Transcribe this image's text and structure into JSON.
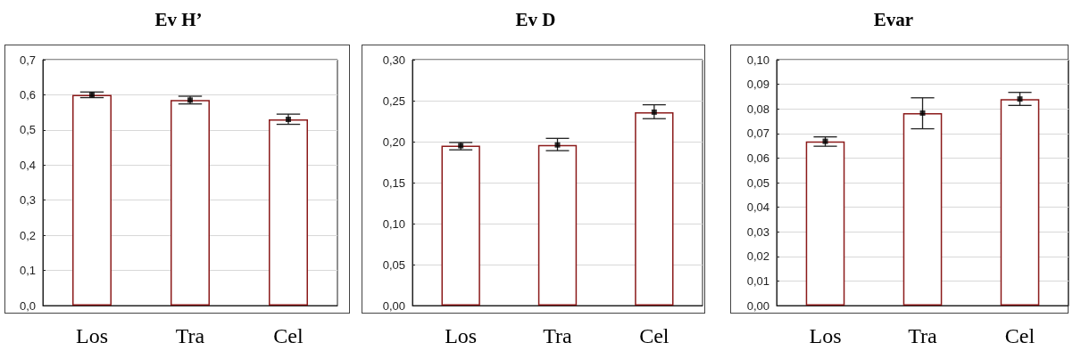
{
  "chart_data": [
    {
      "type": "bar",
      "title": "Ev H’",
      "categories": [
        "Los",
        "Tra",
        "Cel"
      ],
      "series": [
        {
          "color": "#8b1a1a",
          "values": [
            0.6,
            0.585,
            0.53
          ],
          "errors": [
            [
              0.592,
              0.608
            ],
            [
              0.574,
              0.596
            ],
            [
              0.516,
              0.545
            ]
          ]
        },
        {
          "type": "scatter",
          "color": "#000000",
          "x": [
            "Los",
            "Tra",
            "Cel"
          ],
          "values": [
            0.6,
            0.585,
            0.53
          ]
        }
      ],
      "ylim": [
        0,
        0.7
      ],
      "yticks": [
        {
          "value": 0,
          "label": "0,0"
        },
        {
          "value": 0.1,
          "label": "0,1"
        },
        {
          "value": 0.2,
          "label": "0,2"
        },
        {
          "value": 0.3,
          "label": "0,3"
        },
        {
          "value": 0.4,
          "label": "0,4"
        },
        {
          "value": 0.5,
          "label": "0,5"
        },
        {
          "value": 0.6,
          "label": "0,6"
        },
        {
          "value": 0.7,
          "label": "0,7"
        }
      ],
      "grid": "y",
      "marker": "square"
    },
    {
      "type": "bar",
      "title": "Ev D",
      "categories": [
        "Los",
        "Tra",
        "Cel"
      ],
      "series": [
        {
          "color": "#8b1a1a",
          "values": [
            0.195,
            0.196,
            0.236
          ],
          "errors": [
            [
              0.19,
              0.199
            ],
            [
              0.189,
              0.204
            ],
            [
              0.228,
              0.245
            ]
          ]
        },
        {
          "type": "scatter",
          "color": "#000000",
          "x": [
            "Los",
            "Tra",
            "Cel"
          ],
          "values": [
            0.195,
            0.196,
            0.236
          ]
        }
      ],
      "ylim": [
        0,
        0.3
      ],
      "yticks": [
        {
          "value": 0,
          "label": "0,00"
        },
        {
          "value": 0.05,
          "label": "0,05"
        },
        {
          "value": 0.1,
          "label": "0,10"
        },
        {
          "value": 0.15,
          "label": "0,15"
        },
        {
          "value": 0.2,
          "label": "0,20"
        },
        {
          "value": 0.25,
          "label": "0,25"
        },
        {
          "value": 0.3,
          "label": "0,30"
        }
      ],
      "grid": "y",
      "marker": "square"
    },
    {
      "type": "bar",
      "title": "Evar",
      "categories": [
        "Los",
        "Tra",
        "Cel"
      ],
      "series": [
        {
          "color": "#8b1a1a",
          "values": [
            0.0668,
            0.0783,
            0.084
          ],
          "errors": [
            [
              0.0648,
              0.0686
            ],
            [
              0.0719,
              0.0845
            ],
            [
              0.0814,
              0.0867
            ]
          ]
        },
        {
          "type": "scatter",
          "color": "#000000",
          "x": [
            "Los",
            "Tra",
            "Cel"
          ],
          "values": [
            0.0668,
            0.0783,
            0.084
          ]
        }
      ],
      "ylim": [
        0,
        0.1
      ],
      "yticks": [
        {
          "value": 0,
          "label": "0,00"
        },
        {
          "value": 0.01,
          "label": "0,01"
        },
        {
          "value": 0.02,
          "label": "0,02"
        },
        {
          "value": 0.03,
          "label": "0,03"
        },
        {
          "value": 0.04,
          "label": "0,04"
        },
        {
          "value": 0.05,
          "label": "0,05"
        },
        {
          "value": 0.06,
          "label": "0,06"
        },
        {
          "value": 0.07,
          "label": "0,07"
        },
        {
          "value": 0.08,
          "label": "0,08"
        },
        {
          "value": 0.09,
          "label": "0,09"
        },
        {
          "value": 0.1,
          "label": "0,10"
        }
      ],
      "grid": "y",
      "marker": "square"
    }
  ]
}
